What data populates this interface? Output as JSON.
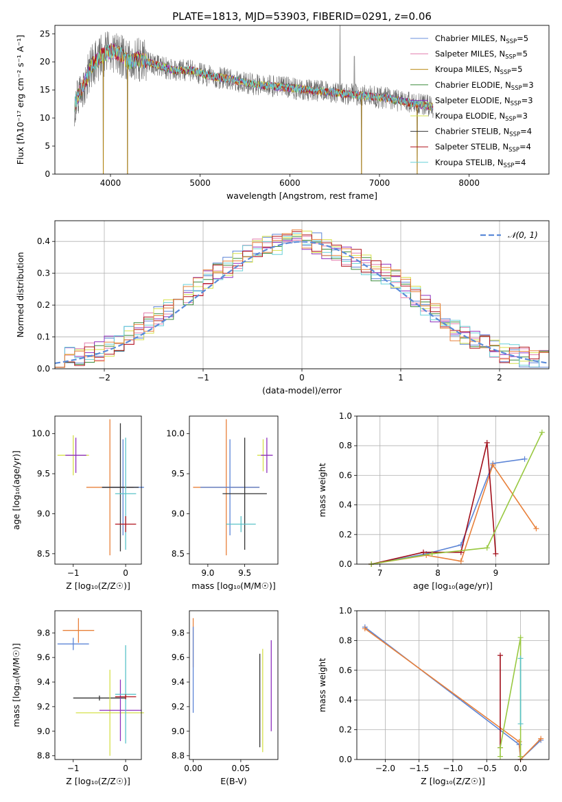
{
  "chart_data": [
    {
      "id": "spectrum",
      "type": "line",
      "title": "PLATE=1813, MJD=53903, FIBERID=0291, z=0.06",
      "xlabel": "wavelength [Angstrom, rest frame]",
      "ylabel": "Flux [fλ10⁻¹⁷ erg cm⁻² s⁻¹ A⁻¹]",
      "xlim": [
        3380,
        8890
      ],
      "ylim": [
        0,
        26.5
      ],
      "xticks": [
        4000,
        5000,
        6000,
        7000,
        8000
      ],
      "yticks": [
        0,
        5,
        10,
        15,
        20,
        25
      ],
      "legend_position": "top-right",
      "legend": [
        "Chabrier MILES, N_SSP=5",
        "Salpeter MILES, N_SSP=5",
        "Kroupa MILES, N_SSP=5",
        "Chabrier ELODIE, N_SSP=3",
        "Salpeter ELODIE, N_SSP=3",
        "Kroupa ELODIE, N_SSP=3",
        "Chabrier STELIB, N_SSP=4",
        "Salpeter STELIB, N_SSP=4",
        "Kroupa STELIB, N_SSP=4"
      ],
      "continuum": {
        "x": [
          3600,
          3700,
          3800,
          3900,
          4000,
          4100,
          4200,
          4300,
          4500,
          4700,
          4900,
          5100,
          5300,
          5600,
          5900,
          6200,
          6500,
          6800,
          7100,
          7400,
          7600
        ],
        "y": [
          12.5,
          16,
          19.5,
          21,
          22,
          21.5,
          20,
          20.5,
          19.5,
          18.5,
          18.5,
          17.5,
          17,
          16,
          15.5,
          15,
          14.5,
          14,
          13.5,
          12.5,
          12
        ]
      },
      "features": [
        {
          "x": 3920,
          "y": 0
        },
        {
          "x": 4190,
          "y": 0
        },
        {
          "x": 6800,
          "y": 0
        },
        {
          "x": 7420,
          "y": 0
        },
        {
          "x": 6560,
          "y": 26.5
        },
        {
          "x": 6720,
          "y": 21
        }
      ]
    },
    {
      "id": "residuals",
      "type": "line",
      "xlabel": "(data-model)/error",
      "ylabel": "Normed distribution",
      "xlim": [
        -2.5,
        2.5
      ],
      "ylim": [
        0,
        0.465
      ],
      "xticks": [
        -2,
        -1,
        0,
        1,
        2
      ],
      "yticks": [
        0,
        0.1,
        0.2,
        0.3,
        0.4
      ],
      "grid": true,
      "legend_position": "top-right",
      "reference_curve": {
        "name": "𝒩(0, 1)",
        "mean": 0,
        "sigma": 1
      },
      "histogram_envelope": {
        "x": [
          -2.5,
          -2.0,
          -1.5,
          -1.0,
          -0.5,
          0.0,
          0.5,
          1.0,
          1.5,
          2.0,
          2.5
        ],
        "y": [
          0.03,
          0.06,
          0.15,
          0.27,
          0.37,
          0.41,
          0.35,
          0.27,
          0.13,
          0.05,
          0.02
        ]
      }
    },
    {
      "id": "age-vs-Z",
      "type": "scatter",
      "xlabel": "Z [log₁₀(Z/Z☉)]",
      "ylabel": "age  [log₁₀(age/yr)]",
      "xlim": [
        -1.35,
        0.3
      ],
      "ylim": [
        8.37,
        10.22
      ],
      "xticks": [
        -1,
        0
      ],
      "yticks": [
        8.5,
        9.0,
        9.5,
        10.0
      ],
      "points": [
        {
          "x": -0.3,
          "y": 9.33,
          "xerr": 0.45,
          "yerr": 0.85
        },
        {
          "x": -0.05,
          "y": 9.33,
          "xerr": 0.4,
          "yerr": 0.6
        },
        {
          "x": -0.1,
          "y": 9.33,
          "xerr": 0.35,
          "yerr": 0.8
        },
        {
          "x": -1.0,
          "y": 9.73,
          "xerr": 0.3,
          "yerr": 0.25
        },
        {
          "x": -0.95,
          "y": 9.73,
          "xerr": 0.2,
          "yerr": 0.22
        },
        {
          "x": 0.0,
          "y": 9.25,
          "xerr": 0.2,
          "yerr": 0.7
        },
        {
          "x": 0.0,
          "y": 8.87,
          "xerr": 0.2,
          "yerr": 0.1
        }
      ]
    },
    {
      "id": "age-vs-mass",
      "type": "scatter",
      "xlabel": "mass [log₁₀(M/M☉)]",
      "ylabel": "",
      "xlim": [
        8.75,
        9.95
      ],
      "ylim": [
        8.37,
        10.22
      ],
      "xticks": [
        9.0,
        9.5
      ],
      "yticks": [
        8.5,
        9.0,
        9.5,
        10.0
      ],
      "points": [
        {
          "x": 9.25,
          "y": 9.33,
          "xerr": 0.45,
          "yerr": 0.85
        },
        {
          "x": 9.3,
          "y": 9.33,
          "xerr": 0.4,
          "yerr": 0.6
        },
        {
          "x": 9.5,
          "y": 9.25,
          "xerr": 0.3,
          "yerr": 0.7
        },
        {
          "x": 9.75,
          "y": 9.73,
          "xerr": 0.08,
          "yerr": 0.2
        },
        {
          "x": 9.8,
          "y": 9.73,
          "xerr": 0.08,
          "yerr": 0.22
        },
        {
          "x": 9.45,
          "y": 8.87,
          "xerr": 0.2,
          "yerr": 0.1
        }
      ]
    },
    {
      "id": "weight-vs-age",
      "type": "line",
      "xlabel": "age  [log₁₀(age/yr)]",
      "ylabel": "mass weight",
      "xlim": [
        6.6,
        9.92
      ],
      "ylim": [
        0,
        1.0
      ],
      "xticks": [
        7,
        8,
        9
      ],
      "yticks": [
        0,
        0.2,
        0.4,
        0.6,
        0.8,
        1.0
      ],
      "grid": true,
      "series": [
        {
          "x": [
            6.85,
            7.8,
            8.4,
            8.95,
            9.5
          ],
          "y": [
            0.0,
            0.07,
            0.13,
            0.68,
            0.71
          ]
        },
        {
          "x": [
            6.85,
            7.8,
            8.4,
            8.95,
            9.7
          ],
          "y": [
            0.0,
            0.06,
            0.02,
            0.67,
            0.24
          ]
        },
        {
          "x": [
            6.85,
            7.75,
            8.4,
            8.85,
            9.0
          ],
          "y": [
            0.0,
            0.08,
            0.08,
            0.82,
            0.07
          ]
        },
        {
          "x": [
            6.85,
            7.9,
            8.85,
            9.8
          ],
          "y": [
            0.0,
            0.07,
            0.11,
            0.89
          ]
        }
      ]
    },
    {
      "id": "mass-vs-Z",
      "type": "scatter",
      "xlabel": "Z [log₁₀(Z/Z☉)]",
      "ylabel": "mass [log₁₀(M/M☉)]",
      "xlim": [
        -1.35,
        0.3
      ],
      "ylim": [
        8.77,
        9.98
      ],
      "xticks": [
        -1,
        0
      ],
      "yticks": [
        8.8,
        9.0,
        9.2,
        9.4,
        9.6,
        9.8
      ],
      "points": [
        {
          "x": -0.9,
          "y": 9.82,
          "xerr": 0.3,
          "yerr": 0.1
        },
        {
          "x": -1.0,
          "y": 9.71,
          "xerr": 0.3,
          "yerr": 0.05
        },
        {
          "x": -0.5,
          "y": 9.27,
          "xerr": 0.5,
          "yerr": 0.02
        },
        {
          "x": -0.3,
          "y": 9.15,
          "xerr": 0.65,
          "yerr": 0.35
        },
        {
          "x": -0.1,
          "y": 9.17,
          "xerr": 0.4,
          "yerr": 0.25
        },
        {
          "x": 0.0,
          "y": 9.3,
          "xerr": 0.2,
          "yerr": 0.4
        },
        {
          "x": 0.0,
          "y": 9.28,
          "xerr": 0.2,
          "yerr": 0.02
        }
      ]
    },
    {
      "id": "mass-vs-EBV",
      "type": "scatter",
      "xlabel": "E(B-V)",
      "ylabel": "",
      "xlim": [
        -0.004,
        0.089
      ],
      "ylim": [
        8.77,
        9.98
      ],
      "xticks": [
        0.0,
        0.05
      ],
      "yticks": [
        8.8,
        9.0,
        9.2,
        9.4,
        9.6,
        9.8
      ],
      "points": [
        {
          "x": 0.0,
          "y": 9.72,
          "xerr": 0,
          "yerr": 0.2
        },
        {
          "x": 0.0,
          "y": 9.5,
          "xerr": 0,
          "yerr": 0.35
        },
        {
          "x": 0.07,
          "y": 9.25,
          "xerr": 0,
          "yerr": 0.38
        },
        {
          "x": 0.073,
          "y": 9.25,
          "xerr": 0,
          "yerr": 0.42
        },
        {
          "x": 0.082,
          "y": 9.37,
          "xerr": 0,
          "yerr": 0.37
        }
      ]
    },
    {
      "id": "weight-vs-Z",
      "type": "line",
      "xlabel": "Z [log₁₀(Z/Z☉)]",
      "ylabel": "mass weight",
      "xlim": [
        -2.42,
        0.42
      ],
      "ylim": [
        0,
        1.0
      ],
      "xticks": [
        -2.0,
        -1.5,
        -1.0,
        -0.5,
        0.0
      ],
      "yticks": [
        0,
        0.2,
        0.4,
        0.6,
        0.8,
        1.0
      ],
      "grid": true,
      "series": [
        {
          "x": [
            -2.3,
            -0.02,
            0.0,
            0.3
          ],
          "y": [
            0.89,
            0.1,
            0.0,
            0.13
          ]
        },
        {
          "x": [
            -2.3,
            -0.02,
            0.0,
            0.3
          ],
          "y": [
            0.88,
            0.12,
            0.0,
            0.14
          ]
        },
        {
          "x": [
            -0.3,
            -0.3
          ],
          "y": [
            0.7,
            0.08
          ]
        },
        {
          "x": [
            -0.3,
            -0.3,
            0.0,
            0.0
          ],
          "y": [
            0.02,
            0.08,
            0.82,
            0.02
          ]
        },
        {
          "x": [
            0.0,
            0.0
          ],
          "y": [
            0.68,
            0.24
          ]
        }
      ]
    }
  ]
}
